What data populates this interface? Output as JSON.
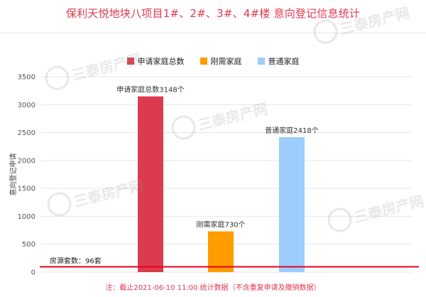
{
  "header": {
    "title": "保利天悦地块八项目1#、2#、3#、4#楼 意向登记信息统计"
  },
  "watermark": {
    "text": "三泰房产网"
  },
  "note": "注：截止2021-06-10 11:00 统计数据（不含重复申请及撤销数据）",
  "chart_data": {
    "type": "bar",
    "title": "保利天悦地块八项目1#、2#、3#、4#楼 意向登记信息统计",
    "ylabel": "意向登记申请",
    "xlabel": "",
    "ylim": [
      0,
      3500
    ],
    "yticks": [
      0,
      500,
      1000,
      1500,
      2000,
      2500,
      3000,
      3500
    ],
    "grid": true,
    "legend_position": "top-center",
    "categories": [
      "申请家庭总数",
      "刚需家庭",
      "普通家庭"
    ],
    "series": [
      {
        "name": "申请家庭总数",
        "value": 3148,
        "color": "#dc3b4f",
        "data_label": "申请家庭总数3148个"
      },
      {
        "name": "刚需家庭",
        "value": 730,
        "color": "#ff9c00",
        "data_label": "刚需家庭730个"
      },
      {
        "name": "普通家庭",
        "value": 2418,
        "color": "#9ccdfc",
        "data_label": "普通家庭2418个"
      }
    ],
    "reference_line": {
      "label": "房源套数：96套",
      "value": 96,
      "color": "#e8001c"
    }
  }
}
